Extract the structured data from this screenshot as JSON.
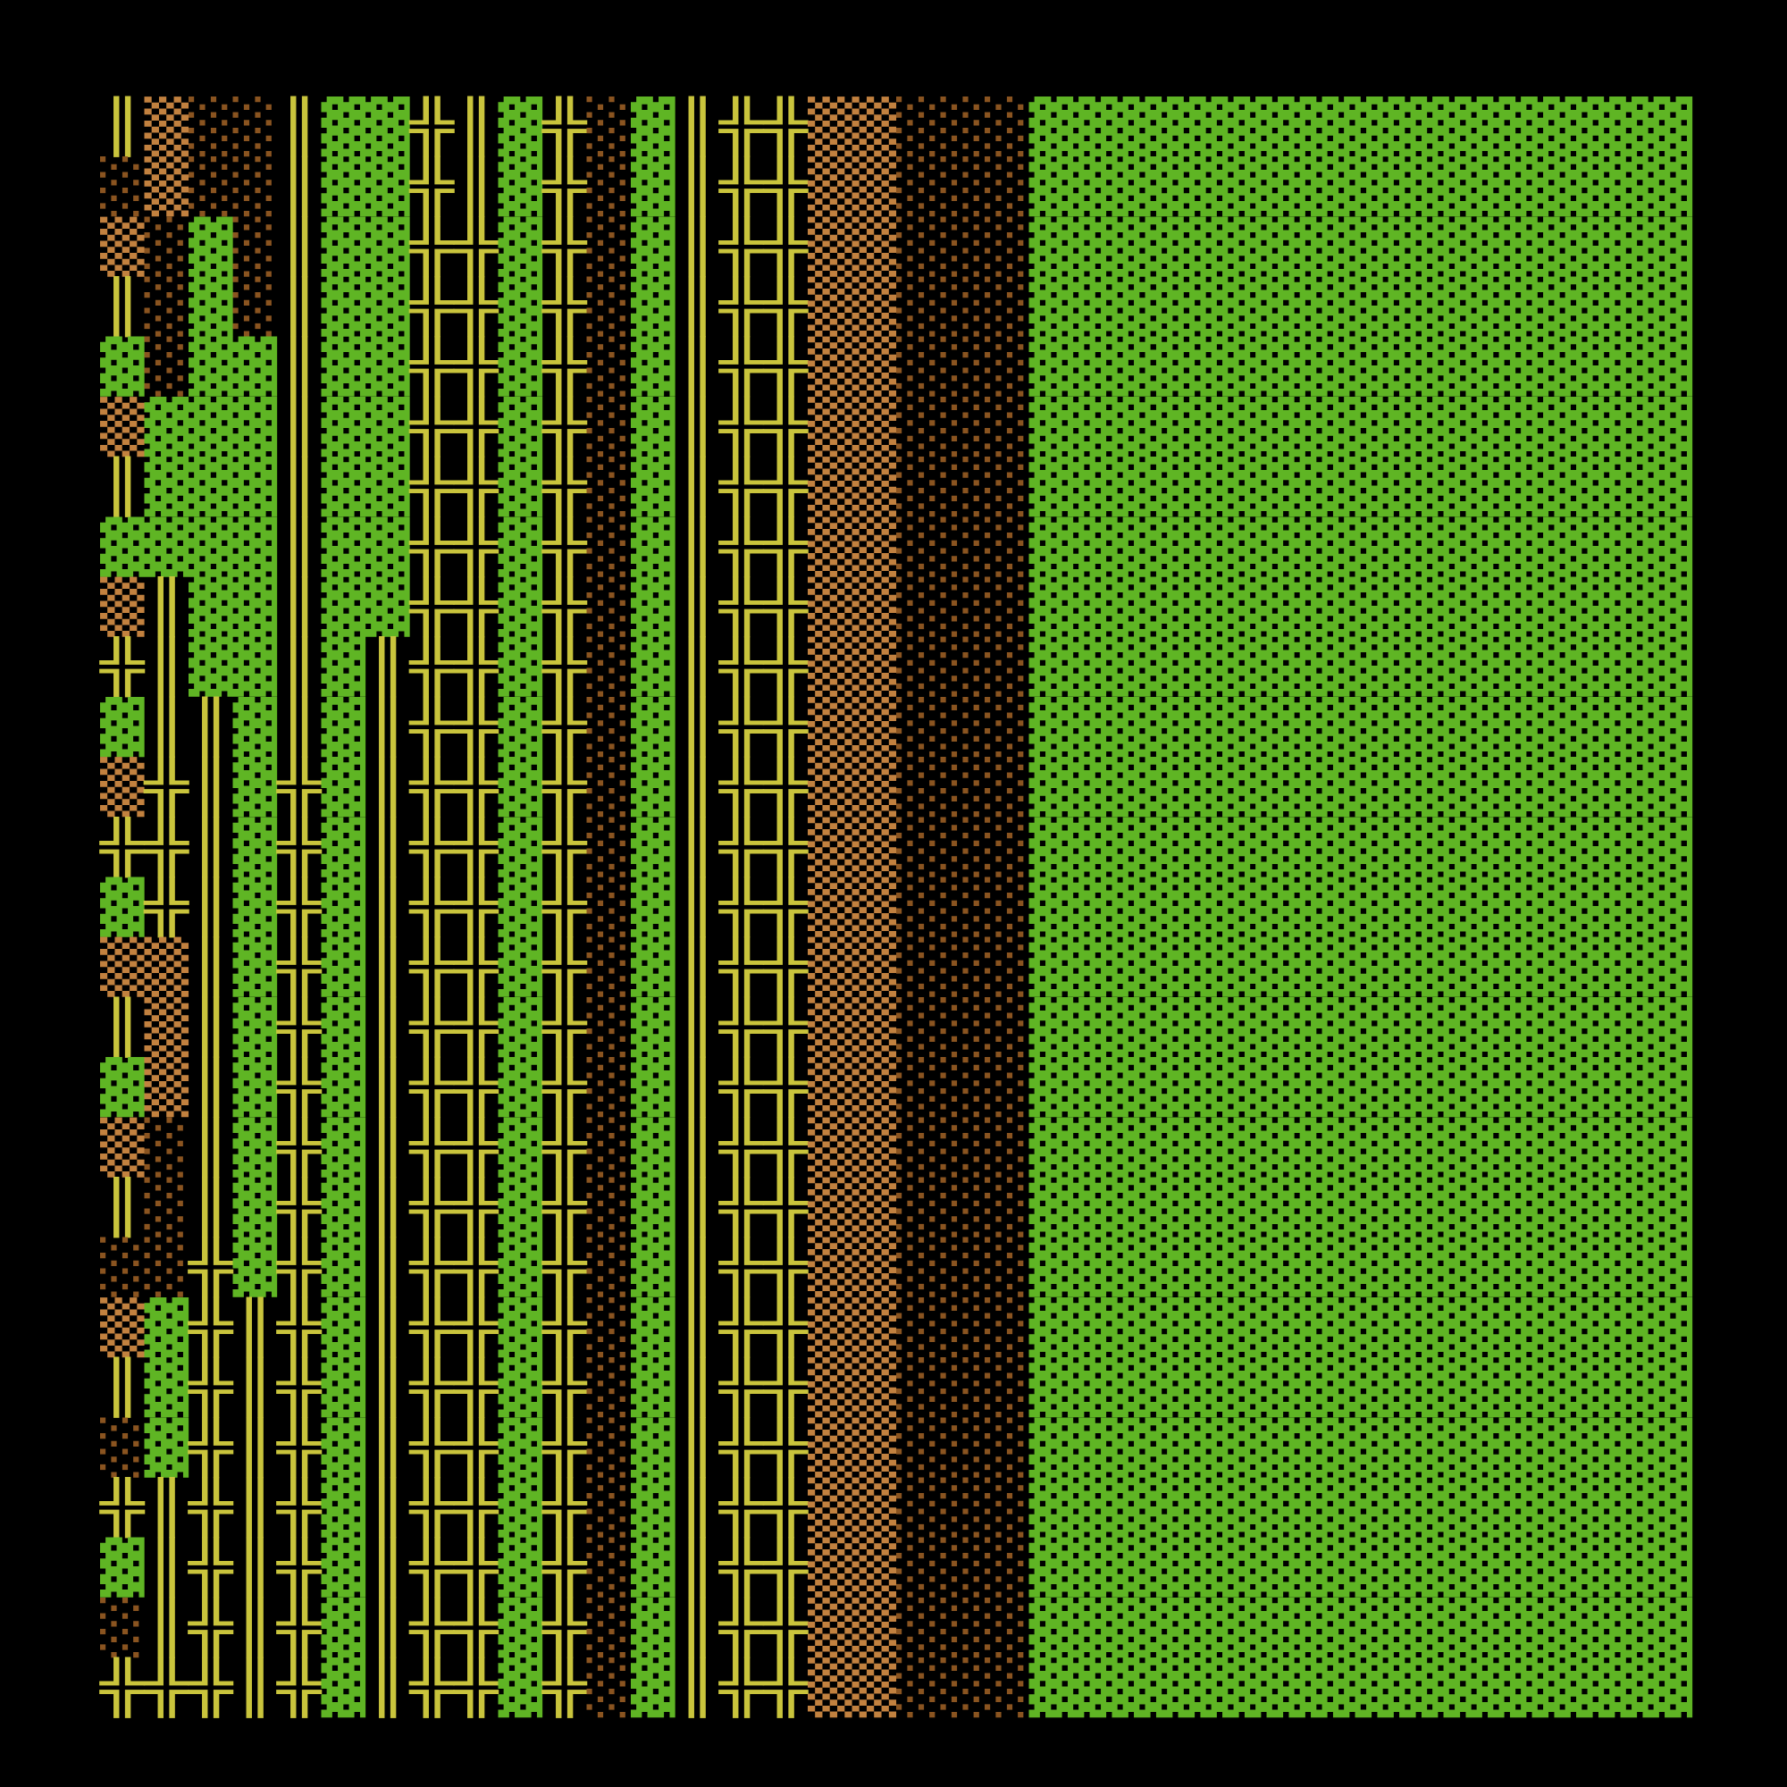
{
  "grid": {
    "colors": {
      "▓": "#5fb524",
      "║": "#c9c43c",
      "╬": "#c9c43c",
      "▒": "#c2813f",
      "░": "#8a5420"
    },
    "rows": [
      "║▒░░║▓▓╬║▓╬░▓║╬╬▒▒░░░▓▓▓▓▓▓▓▓▓▓▓▓▓▓▓",
      "░▒░░║▓▓╬║▓╬░▓║╬╬▒▒░░░▓▓▓▓▓▓▓▓▓▓▓▓▓▓▓",
      "▒░▓░║▓▓╬╬▓╬░▓║╬╬▒▒░░░▓▓▓▓▓▓▓▓▓▓▓▓▓▓▓",
      "║░▓░║▓▓╬╬▓╬░▓║╬╬▒▒░░░▓▓▓▓▓▓▓▓▓▓▓▓▓▓▓",
      "▓░▓▓║▓▓╬╬▓╬░▓║╬╬▒▒░░░▓▓▓▓▓▓▓▓▓▓▓▓▓▓▓",
      "▒▓▓▓║▓▓╬╬▓╬░▓║╬╬▒▒░░░▓▓▓▓▓▓▓▓▓▓▓▓▓▓▓",
      "║▓▓▓║▓▓╬╬▓╬░▓║╬╬▒▒░░░▓▓▓▓▓▓▓▓▓▓▓▓▓▓▓",
      "▓▓▓▓║▓▓╬╬▓╬░▓║╬╬▒▒░░░▓▓▓▓▓▓▓▓▓▓▓▓▓▓▓",
      "▒║▓▓║▓▓╬╬▓╬░▓║╬╬▒▒░░░▓▓▓▓▓▓▓▓▓▓▓▓▓▓▓",
      "╬║▓▓║▓║╬╬▓╬░▓║╬╬▒▒░░░▓▓▓▓▓▓▓▓▓▓▓▓▓▓▓",
      "▓║║▓║▓║╬╬▓╬░▓║╬╬▒▒░░░▓▓▓▓▓▓▓▓▓▓▓▓▓▓▓",
      "▒╬║▓╬▓║╬╬▓╬░▓║╬╬▒▒░░░▓▓▓▓▓▓▓▓▓▓▓▓▓▓▓",
      "╬╬║▓╬▓║╬╬▓╬░▓║╬╬▒▒░░░▓▓▓▓▓▓▓▓▓▓▓▓▓▓▓",
      "▓╬║▓╬▓║╬╬▓╬░▓║╬╬▒▒░░░▓▓▓▓▓▓▓▓▓▓▓▓▓▓▓",
      "▒▒║▓╬▓║╬╬▓╬░▓║╬╬▒▒░░░▓▓▓▓▓▓▓▓▓▓▓▓▓▓▓",
      "║▒║▓╬▓║╬╬▓╬░▓║╬╬▒▒░░░▓▓▓▓▓▓▓▓▓▓▓▓▓▓▓",
      "▓▒║▓╬▓║╬╬▓╬░▓║╬╬▒▒░░░▓▓▓▓▓▓▓▓▓▓▓▓▓▓▓",
      "▒░║▓╬▓║╬╬▓╬░▓║╬╬▒▒░░░▓▓▓▓▓▓▓▓▓▓▓▓▓▓▓",
      "║░║▓╬▓║╬╬▓╬░▓║╬╬▒▒░░░▓▓▓▓▓▓▓▓▓▓▓▓▓▓▓",
      "░░╬▓╬▓║╬╬▓╬░▓║╬╬▒▒░░░▓▓▓▓▓▓▓▓▓▓▓▓▓▓▓",
      "▒▓╬║╬▓║╬╬▓╬░▓║╬╬▒▒░░░▓▓▓▓▓▓▓▓▓▓▓▓▓▓▓",
      "║▓╬║╬▓║╬╬▓╬░▓║╬╬▒▒░░░▓▓▓▓▓▓▓▓▓▓▓▓▓▓▓",
      "░▓╬║╬▓║╬╬▓╬░▓║╬╬▒▒░░░▓▓▓▓▓▓▓▓▓▓▓▓▓▓▓",
      "╬║╬║╬▓║╬╬▓╬░▓║╬╬▒▒░░░▓▓▓▓▓▓▓▓▓▓▓▓▓▓▓",
      "▓║╬║╬▓║╬╬▓╬░▓║╬╬▒▒░░░▓▓▓▓▓▓▓▓▓▓▓▓▓▓▓",
      "░║╬║╬▓║╬╬▓╬░▓║╬╬▒▒░░░▓▓▓▓▓▓▓▓▓▓▓▓▓▓▓",
      "╬╬╬║╬▓║╬╬▓╬░▓║╬╬▒▒░░░▓▓▓▓▓▓▓▓▓▓▓▓▓▓▓"
    ]
  }
}
